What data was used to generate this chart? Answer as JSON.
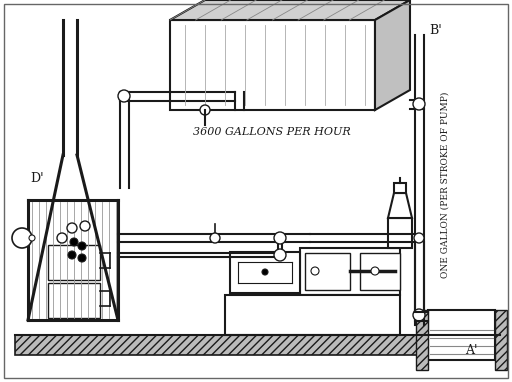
{
  "bg_color": "white",
  "line_color": "#1a1a1a",
  "label_b": "B'",
  "label_d": "D'",
  "label_a": "A'",
  "label_tank": "3600 GALLONS PER HOUR",
  "label_vertical": "ONE GALLON (PER STROKE OF PUMP)",
  "figsize": [
    5.12,
    3.82
  ],
  "dpi": 100
}
